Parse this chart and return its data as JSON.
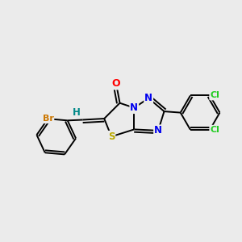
{
  "bg_color": "#ebebeb",
  "atom_colors": {
    "O": "#ff0000",
    "N": "#0000ee",
    "S": "#bbaa00",
    "Br": "#cc7700",
    "Cl": "#22cc22",
    "H": "#008888",
    "C": "#000000"
  },
  "lw": 1.4
}
